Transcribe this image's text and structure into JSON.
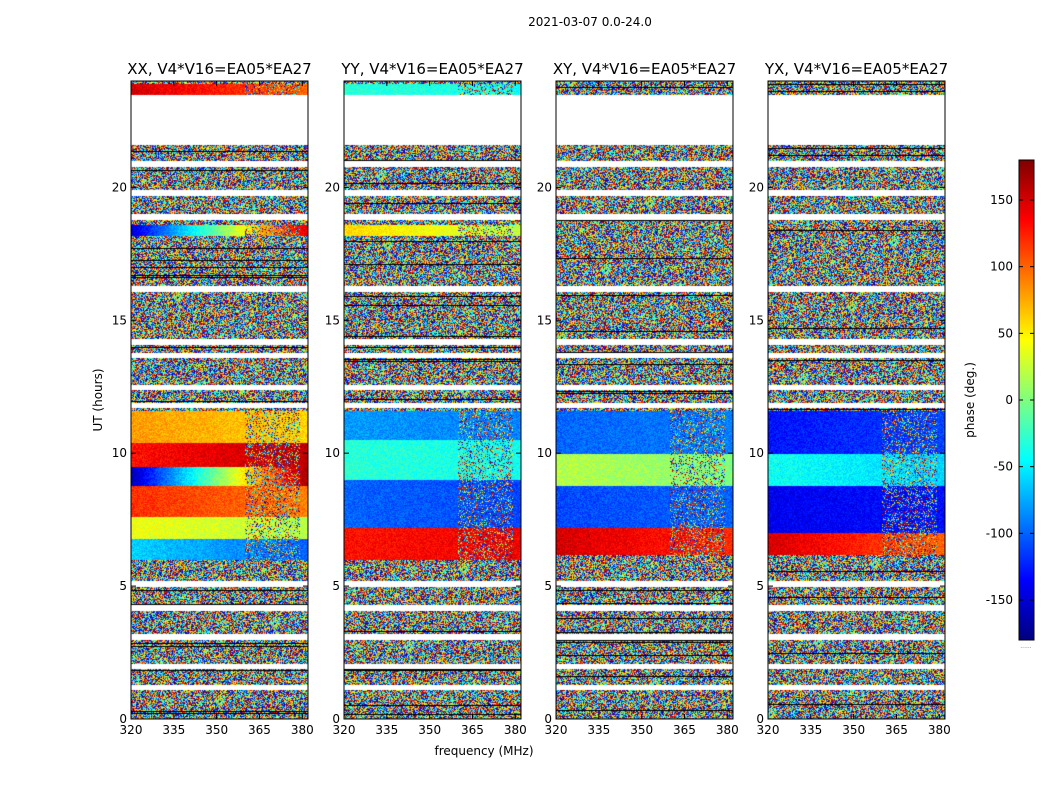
{
  "chart_data": {
    "type": "heatmap",
    "suptitle": "2021-03-07 0.0-24.0",
    "xlabel": "frequency (MHz)",
    "ylabel": "UT (hours)",
    "xlim": [
      320,
      382
    ],
    "ylim": [
      0,
      24
    ],
    "xticks": [
      320,
      335,
      350,
      365,
      380
    ],
    "yticks": [
      0,
      5,
      10,
      15,
      20
    ],
    "colorbar": {
      "label": "phase (deg.)",
      "range": [
        -180,
        180
      ],
      "ticks": [
        -150,
        -100,
        -50,
        0,
        50,
        100,
        150
      ],
      "colormap": "jet",
      "colors": [
        "#00007f",
        "#0000ff",
        "#007fff",
        "#00ffff",
        "#7fff7f",
        "#ffff00",
        "#ff7f00",
        "#ff0000",
        "#7f0000"
      ],
      "footnote": "......"
    },
    "blank_bands_hours": [
      [
        21.6,
        23.5
      ],
      [
        20.8,
        21.0
      ],
      [
        19.7,
        19.9
      ],
      [
        18.8,
        19.0
      ],
      [
        16.1,
        16.3
      ],
      [
        14.1,
        14.3
      ],
      [
        13.6,
        13.8
      ],
      [
        12.4,
        12.6
      ],
      [
        11.7,
        11.9
      ],
      [
        5.0,
        5.2
      ],
      [
        4.1,
        4.3
      ],
      [
        3.0,
        3.2
      ],
      [
        1.9,
        2.1
      ],
      [
        1.1,
        1.3
      ]
    ],
    "panels": [
      {
        "title": "XX, V4*V16=EA05*EA27",
        "coherent_segments": [
          {
            "hours": [
              23.5,
              23.9
            ],
            "phase_start": 150,
            "phase_end": 100
          },
          {
            "hours": [
              18.2,
              18.6
            ],
            "phase_start": -150,
            "phase_end": 150
          },
          {
            "hours": [
              10.4,
              11.6
            ],
            "phase_start": 80,
            "phase_end": 60
          },
          {
            "hours": [
              9.5,
              10.4
            ],
            "phase_start": 130,
            "phase_end": 160
          },
          {
            "hours": [
              8.8,
              9.5
            ],
            "phase_start": -160,
            "phase_end": 170
          },
          {
            "hours": [
              7.6,
              8.8
            ],
            "phase_start": 120,
            "phase_end": 90
          },
          {
            "hours": [
              6.8,
              7.6
            ],
            "phase_start": 40,
            "phase_end": 20
          },
          {
            "hours": [
              6.0,
              6.8
            ],
            "phase_start": -60,
            "phase_end": -100
          }
        ]
      },
      {
        "title": "YY, V4*V16=EA05*EA27",
        "coherent_segments": [
          {
            "hours": [
              23.5,
              23.9
            ],
            "phase_start": -30,
            "phase_end": -40
          },
          {
            "hours": [
              18.2,
              18.6
            ],
            "phase_start": 60,
            "phase_end": 20
          },
          {
            "hours": [
              10.5,
              11.6
            ],
            "phase_start": -80,
            "phase_end": -90
          },
          {
            "hours": [
              9.0,
              10.5
            ],
            "phase_start": -30,
            "phase_end": -40
          },
          {
            "hours": [
              7.2,
              9.0
            ],
            "phase_start": -100,
            "phase_end": -110
          },
          {
            "hours": [
              6.0,
              7.2
            ],
            "phase_start": 130,
            "phase_end": 140
          }
        ]
      },
      {
        "title": "XY, V4*V16=EA05*EA27",
        "coherent_segments": [
          {
            "hours": [
              10.0,
              11.6
            ],
            "phase_start": -100,
            "phase_end": -90
          },
          {
            "hours": [
              8.8,
              10.0
            ],
            "phase_start": 20,
            "phase_end": 0
          },
          {
            "hours": [
              7.2,
              8.8
            ],
            "phase_start": -110,
            "phase_end": -100
          },
          {
            "hours": [
              6.2,
              7.2
            ],
            "phase_start": 150,
            "phase_end": 120
          }
        ]
      },
      {
        "title": "YX, V4*V16=EA05*EA27",
        "coherent_segments": [
          {
            "hours": [
              10.0,
              11.6
            ],
            "phase_start": -130,
            "phase_end": -110
          },
          {
            "hours": [
              8.8,
              10.0
            ],
            "phase_start": -40,
            "phase_end": -60
          },
          {
            "hours": [
              7.0,
              8.8
            ],
            "phase_start": -140,
            "phase_end": -130
          },
          {
            "hours": [
              6.2,
              7.0
            ],
            "phase_start": 150,
            "phase_end": 100
          }
        ]
      }
    ]
  }
}
